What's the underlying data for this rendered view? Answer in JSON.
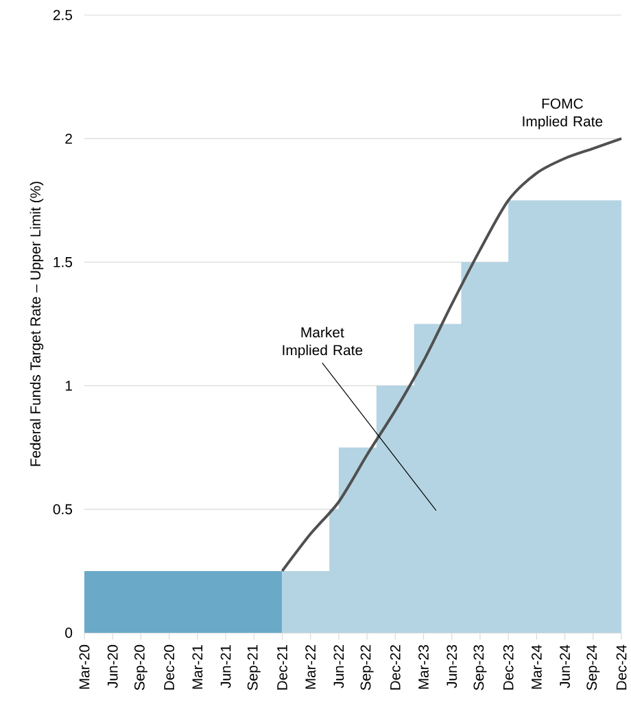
{
  "chart_data": {
    "type": "area",
    "ylabel": "Federal Funds Target Rate – Upper Limit (%)",
    "annotations": [
      "Market Implied Rate",
      "FOMC Implied Rate"
    ],
    "xlim": [
      "2020-03",
      "2024-12"
    ],
    "xticks": [
      {
        "value": "2020-03",
        "label": "Mar-20"
      },
      {
        "value": "2020-06",
        "label": "Jun-20"
      },
      {
        "value": "2020-09",
        "label": "Sep-20"
      },
      {
        "value": "2020-12",
        "label": "Dec-20"
      },
      {
        "value": "2021-03",
        "label": "Mar-21"
      },
      {
        "value": "2021-06",
        "label": "Jun-21"
      },
      {
        "value": "2021-09",
        "label": "Sep-21"
      },
      {
        "value": "2021-12",
        "label": "Dec-21"
      },
      {
        "value": "2022-03",
        "label": "Mar-22"
      },
      {
        "value": "2022-06",
        "label": "Jun-22"
      },
      {
        "value": "2022-09",
        "label": "Sep-22"
      },
      {
        "value": "2022-12",
        "label": "Dec-22"
      },
      {
        "value": "2023-03",
        "label": "Mar-23"
      },
      {
        "value": "2023-06",
        "label": "Jun-23"
      },
      {
        "value": "2023-09",
        "label": "Sep-23"
      },
      {
        "value": "2023-12",
        "label": "Dec-23"
      },
      {
        "value": "2024-03",
        "label": "Mar-24"
      },
      {
        "value": "2024-06",
        "label": "Jun-24"
      },
      {
        "value": "2024-09",
        "label": "Sep-24"
      },
      {
        "value": "2024-12",
        "label": "Dec-24"
      }
    ],
    "ylim": [
      0,
      2.5
    ],
    "yticks": [
      0,
      0.5,
      1,
      1.5,
      2,
      2.5
    ],
    "grid": "y",
    "series": [
      {
        "color": "#6aa9c8",
        "x": [
          "2020-03",
          "2021-12"
        ],
        "values": [
          0.25,
          0.25
        ]
      },
      {
        "color": "#b4d4e3",
        "x": [
          "2021-12",
          "2022-05",
          "2022-05",
          "2022-06",
          "2022-06",
          "2022-10",
          "2022-10",
          "2023-02",
          "2023-02",
          "2023-07",
          "2023-07",
          "2023-12",
          "2023-12",
          "2024-12"
        ],
        "values": [
          0.25,
          0.25,
          0.5,
          0.5,
          0.75,
          0.75,
          1.0,
          1.0,
          1.25,
          1.25,
          1.5,
          1.5,
          1.75,
          1.75
        ]
      },
      {
        "type": "line",
        "color": "#505050",
        "x": [
          "2021-12",
          "2022-03",
          "2022-06",
          "2022-09",
          "2022-12",
          "2023-03",
          "2023-06",
          "2023-09",
          "2023-12",
          "2024-03",
          "2024-06",
          "2024-09",
          "2024-12"
        ],
        "values": [
          0.25,
          0.4,
          0.53,
          0.72,
          0.9,
          1.1,
          1.33,
          1.55,
          1.75,
          1.86,
          1.92,
          1.96,
          2.0
        ]
      }
    ]
  }
}
